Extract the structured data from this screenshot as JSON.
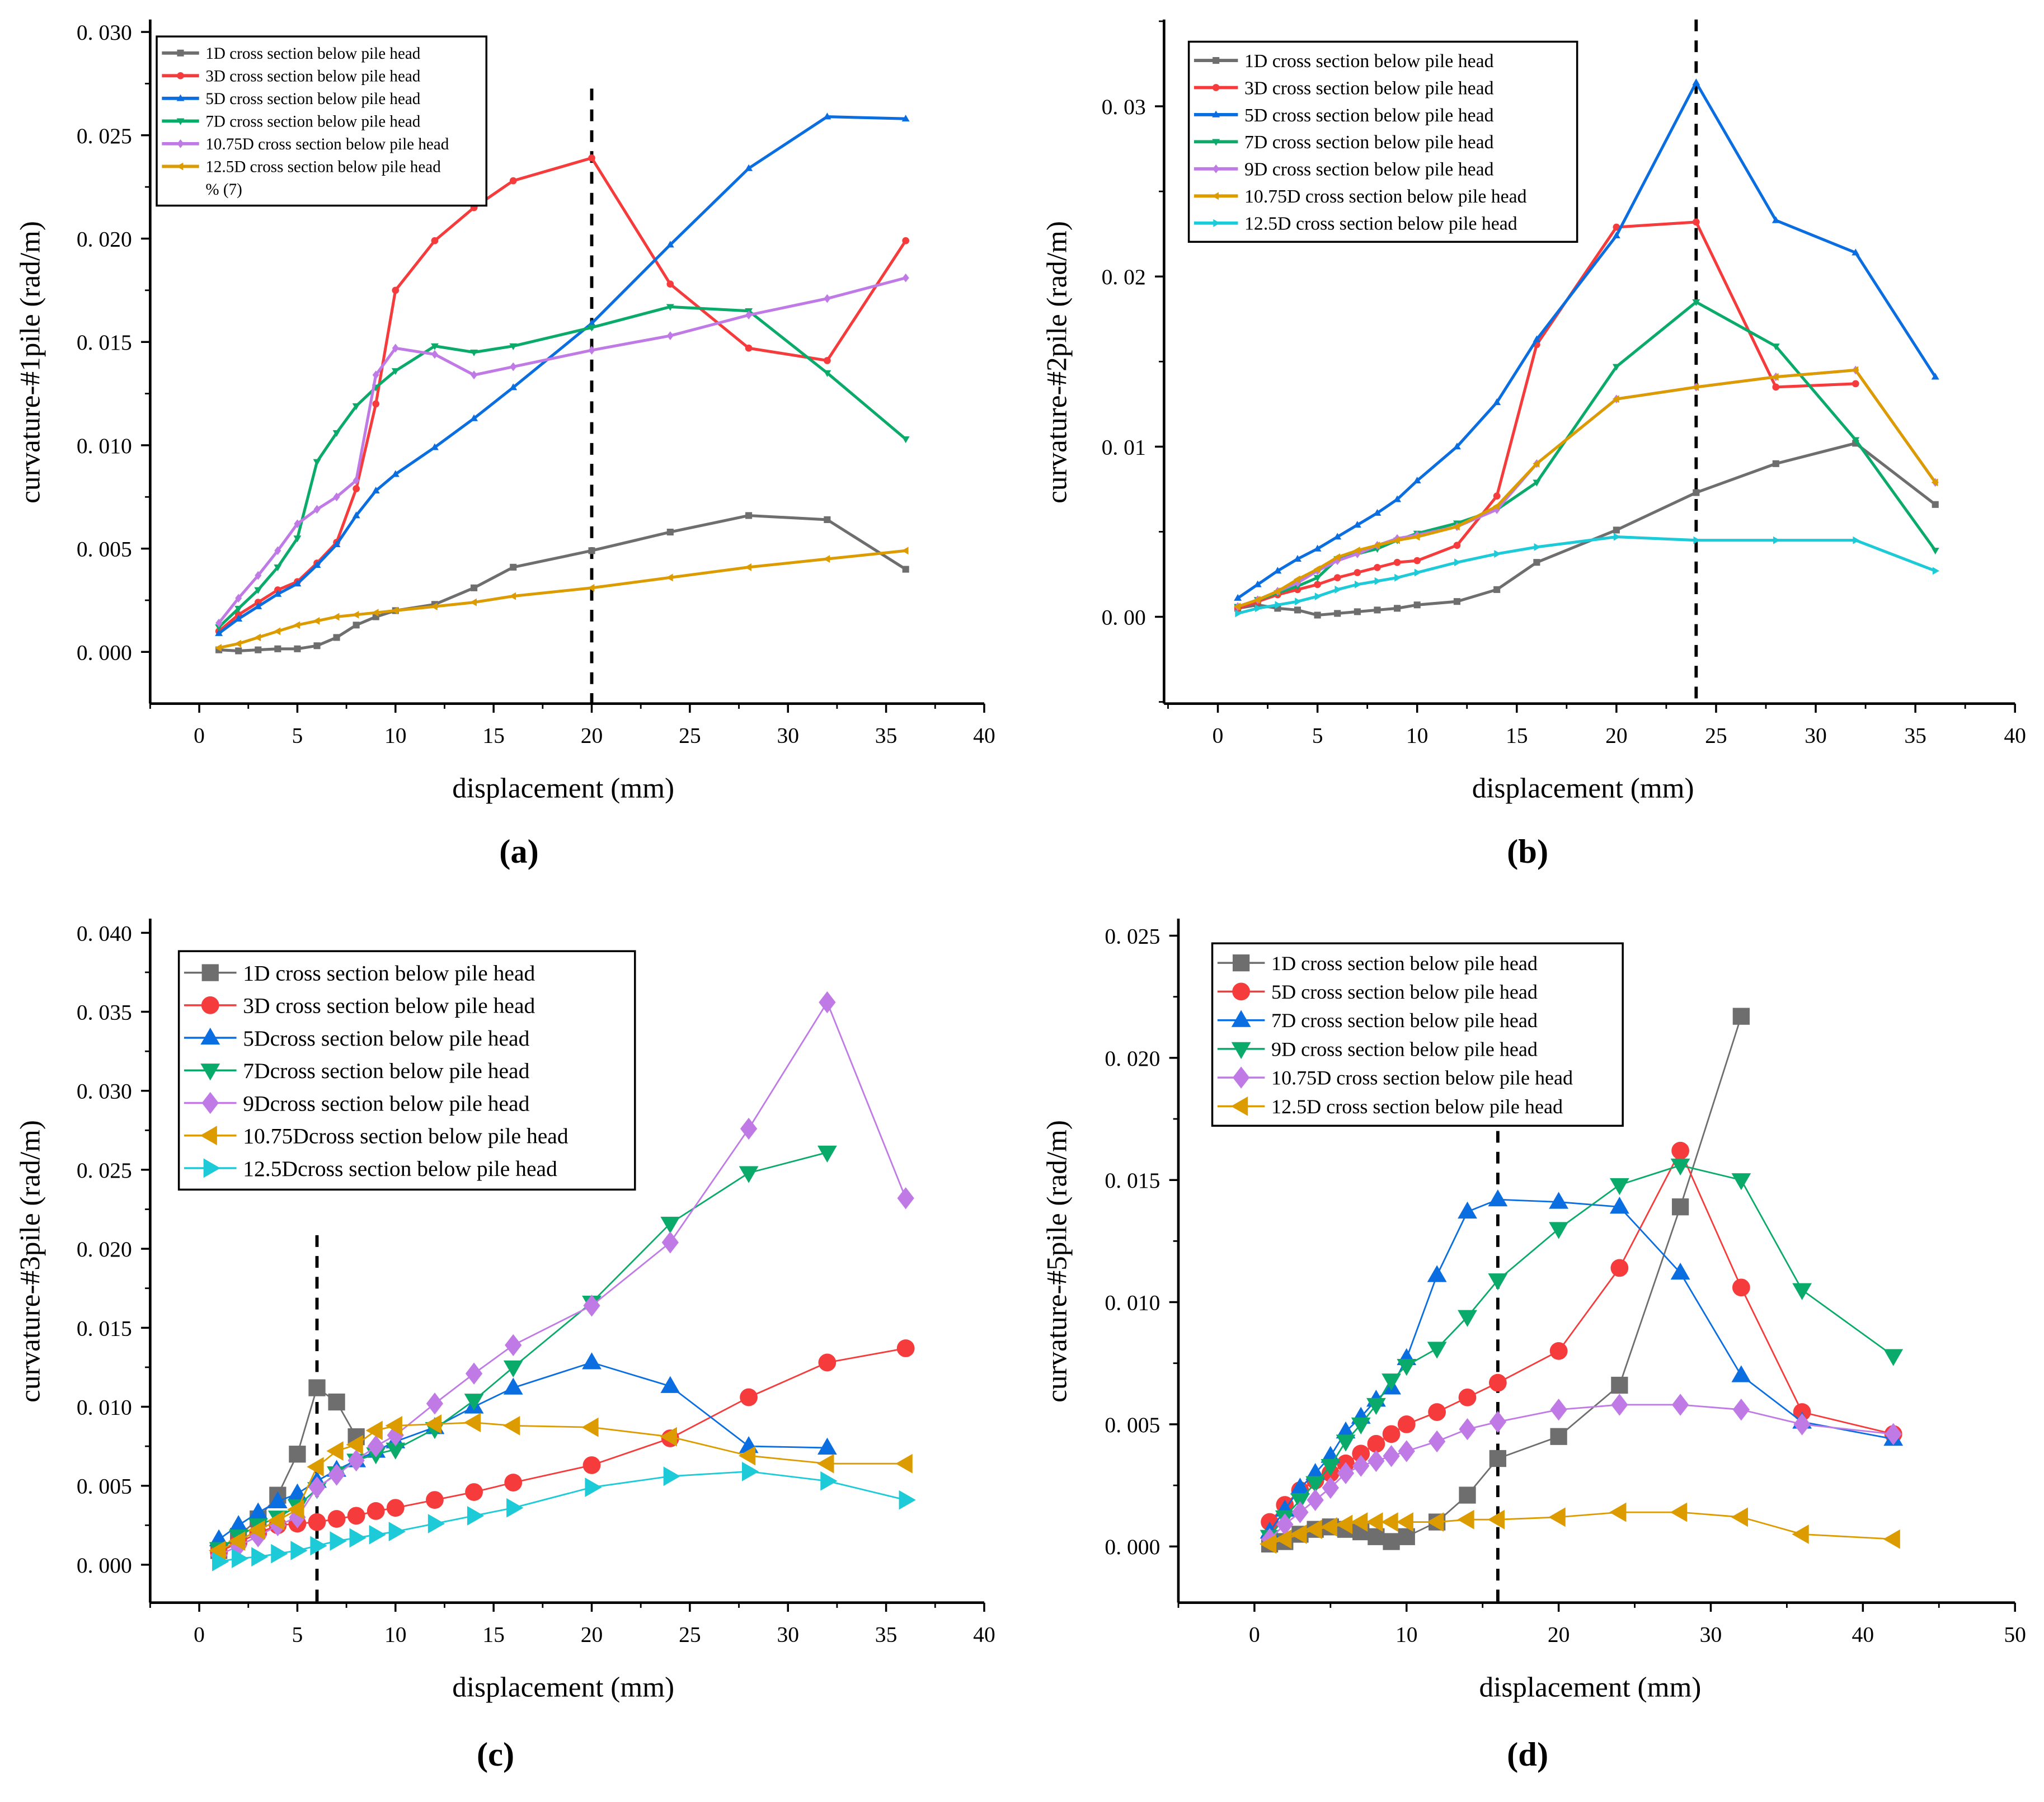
{
  "colors": {
    "gray": "#6e6e6e",
    "red": "#f53b3b",
    "blue": "#0a6ee0",
    "green": "#0aab6a",
    "purple": "#c07ae6",
    "orange": "#dc9c00",
    "cyan": "#1ccad8"
  },
  "chart_data": [
    {
      "panel": "(a)",
      "type": "line",
      "xlabel": "displacement (mm)",
      "ylabel": "curvature-#1pile (rad/m)",
      "xlim": [
        -2.5,
        40
      ],
      "ylim": [
        -0.0025,
        0.0306
      ],
      "xticks": [
        "0",
        "5",
        "10",
        "15",
        "20",
        "25",
        "30",
        "35",
        "40"
      ],
      "yticks": [
        "0. 000",
        "0. 005",
        "0. 010",
        "0. 015",
        "0. 020",
        "0. 025",
        "0. 030"
      ],
      "marker_size": "small",
      "dashed_line_x": 20,
      "legend_position": "top-left",
      "legend_extra": "% (7)",
      "x": [
        1,
        2,
        3,
        4,
        5,
        6,
        7,
        8,
        9,
        10,
        12,
        14,
        16,
        20,
        24,
        28,
        32,
        36
      ],
      "series": [
        {
          "name": "1D cross section below pile head",
          "color": "gray",
          "marker": "square",
          "values": [
            0.0001,
            5e-05,
            0.0001,
            0.00015,
            0.00015,
            0.0003,
            0.0007,
            0.0013,
            0.0017,
            0.002,
            0.0023,
            0.0031,
            0.0041,
            0.0049,
            0.0058,
            0.0066,
            0.0064,
            0.004
          ]
        },
        {
          "name": "3D cross section below pile head",
          "color": "red",
          "marker": "circle",
          "values": [
            0.001,
            0.0018,
            0.0024,
            0.003,
            0.0034,
            0.0043,
            0.0053,
            0.0079,
            0.012,
            0.0175,
            0.0199,
            0.0215,
            0.0228,
            0.0239,
            0.0178,
            0.0147,
            0.0141,
            0.0199
          ]
        },
        {
          "name": "5D cross section below pile head",
          "color": "blue",
          "marker": "triangle-up",
          "values": [
            0.0009,
            0.0016,
            0.0022,
            0.0028,
            0.0033,
            0.0042,
            0.0052,
            0.0066,
            0.0078,
            0.0086,
            0.0099,
            0.0113,
            0.0128,
            0.0159,
            0.0197,
            0.0234,
            0.0259,
            0.0258
          ]
        },
        {
          "name": "7D cross section below pile head",
          "color": "green",
          "marker": "triangle-down",
          "values": [
            0.0012,
            0.0021,
            0.003,
            0.0041,
            0.0055,
            0.0092,
            0.0106,
            0.0119,
            0.0128,
            0.0136,
            0.0148,
            0.0145,
            0.0148,
            0.0157,
            0.0167,
            0.0165,
            0.0135,
            0.0103
          ]
        },
        {
          "name": "10.75D cross section below pile head",
          "color": "purple",
          "marker": "diamond",
          "values": [
            0.0014,
            0.0026,
            0.0037,
            0.0049,
            0.0062,
            0.0069,
            0.0075,
            0.0083,
            0.0134,
            0.0147,
            0.0144,
            0.0134,
            0.0138,
            0.0146,
            0.0153,
            0.0163,
            0.0171,
            0.0181
          ]
        },
        {
          "name": "12.5D cross section below pile head",
          "color": "orange",
          "marker": "triangle-left",
          "values": [
            0.0002,
            0.0004,
            0.0007,
            0.001,
            0.0013,
            0.0015,
            0.0017,
            0.0018,
            0.0019,
            0.002,
            0.0022,
            0.0024,
            0.0027,
            0.0031,
            0.0036,
            0.0041,
            0.0045,
            0.0049
          ]
        }
      ]
    },
    {
      "panel": "(b)",
      "type": "line",
      "xlabel": "displacement (mm)",
      "ylabel": "curvature-#2pile (rad/m)",
      "xlim": [
        -2.7,
        40
      ],
      "ylim": [
        -0.0051,
        0.0351
      ],
      "xticks": [
        "0",
        "5",
        "10",
        "15",
        "20",
        "25",
        "30",
        "35",
        "40"
      ],
      "yticks": [
        "0. 00",
        "0. 01",
        "0. 02",
        "0. 03"
      ],
      "marker_size": "small",
      "dashed_line_x": 24,
      "legend_position": "top-left",
      "x": [
        1,
        2,
        3,
        4,
        5,
        6,
        7,
        8,
        9,
        10,
        12,
        14,
        16,
        20,
        24,
        28,
        32,
        36
      ],
      "series": [
        {
          "name": "1D cross section below pile head",
          "color": "gray",
          "marker": "square",
          "values": [
            0.0005,
            0.0007,
            0.0005,
            0.0004,
            0.0001,
            0.0002,
            0.0003,
            0.0004,
            0.0005,
            0.0007,
            0.0009,
            0.0016,
            0.0032,
            0.0051,
            0.0073,
            0.009,
            0.0102,
            0.0066
          ]
        },
        {
          "name": "3D cross section below pile head",
          "color": "red",
          "marker": "circle",
          "values": [
            0.0005,
            0.0009,
            0.0013,
            0.0016,
            0.0019,
            0.0023,
            0.0026,
            0.0029,
            0.0032,
            0.0033,
            0.0042,
            0.0071,
            0.016,
            0.0229,
            0.0232,
            0.0135,
            0.0137,
            null
          ]
        },
        {
          "name": "5D cross section below pile head",
          "color": "blue",
          "marker": "triangle-up",
          "values": [
            0.0011,
            0.0019,
            0.0027,
            0.0034,
            0.004,
            0.0047,
            0.0054,
            0.0061,
            0.0069,
            0.008,
            0.01,
            0.0126,
            0.0163,
            0.0224,
            0.0314,
            0.0233,
            0.0214,
            0.0141
          ]
        },
        {
          "name": "7D cross section below pile head",
          "color": "green",
          "marker": "triangle-down",
          "values": [
            0.0006,
            0.001,
            0.0014,
            0.0018,
            0.0023,
            0.0034,
            0.0037,
            0.004,
            0.0045,
            0.0049,
            0.0055,
            0.0063,
            0.0079,
            0.0147,
            0.0185,
            0.0159,
            0.0104,
            0.0039
          ]
        },
        {
          "name": "9D cross section below pile head",
          "color": "purple",
          "marker": "diamond",
          "values": [
            0.0006,
            0.001,
            0.0015,
            0.002,
            0.0027,
            0.0033,
            0.0037,
            0.0042,
            0.0046,
            0.0048,
            0.0053,
            0.0063,
            0.009,
            0.0128,
            0.0135,
            0.0141,
            0.0145,
            0.0079
          ]
        },
        {
          "name": "10.75D cross section below pile head",
          "color": "orange",
          "marker": "triangle-left",
          "values": [
            0.0006,
            0.001,
            0.0015,
            0.0022,
            0.0028,
            0.0035,
            0.0039,
            0.0042,
            0.0045,
            0.0047,
            0.0053,
            0.0065,
            0.009,
            0.0128,
            0.0135,
            0.0141,
            0.0145,
            0.0079
          ]
        },
        {
          "name": "12.5D cross section below pile head",
          "color": "cyan",
          "marker": "triangle-right",
          "values": [
            0.0002,
            0.0005,
            0.0007,
            0.0009,
            0.0012,
            0.0016,
            0.0019,
            0.0021,
            0.0023,
            0.0026,
            0.0032,
            0.0037,
            0.0041,
            0.0047,
            0.0045,
            0.0045,
            0.0045,
            0.0027
          ]
        }
      ]
    },
    {
      "panel": "(c)",
      "type": "line",
      "xlabel": "displacement (mm)",
      "ylabel": "curvature-#3pile (rad/m)",
      "xlim": [
        -2.5,
        40
      ],
      "ylim": [
        -0.0024,
        0.0409
      ],
      "xticks": [
        "0",
        "5",
        "10",
        "15",
        "20",
        "25",
        "30",
        "35",
        "40"
      ],
      "yticks": [
        "0. 000",
        "0. 005",
        "0. 010",
        "0. 015",
        "0. 020",
        "0. 025",
        "0. 030",
        "0. 035",
        "0. 040"
      ],
      "marker_size": "large",
      "dashed_line_x": 6,
      "legend_position": "top-left",
      "x": [
        1,
        2,
        3,
        4,
        5,
        6,
        7,
        8,
        9,
        10,
        12,
        14,
        16,
        20,
        24,
        28,
        32,
        36
      ],
      "series": [
        {
          "name": "1D cross section below pile head",
          "color": "gray",
          "marker": "square",
          "values": [
            0.0009,
            0.0018,
            0.0029,
            0.0044,
            0.007,
            0.0112,
            0.0103,
            0.0081,
            null,
            null,
            null,
            null,
            null,
            null,
            null,
            null,
            null,
            null
          ]
        },
        {
          "name": "3D cross section below pile head",
          "color": "red",
          "marker": "circle",
          "values": [
            0.0008,
            0.0014,
            0.002,
            0.0025,
            0.0026,
            0.0027,
            0.0029,
            0.0031,
            0.0034,
            0.0036,
            0.0041,
            0.0046,
            0.0052,
            0.0063,
            0.008,
            0.0106,
            0.0128,
            0.0137
          ]
        },
        {
          "name": "5Dcross section below pile head",
          "color": "blue",
          "marker": "triangle-up",
          "values": [
            0.0016,
            0.0025,
            0.0033,
            0.004,
            0.0045,
            0.0053,
            0.006,
            0.0066,
            0.0072,
            0.0078,
            0.0087,
            0.01,
            0.0112,
            0.0128,
            0.0113,
            0.0075,
            0.0074,
            null
          ]
        },
        {
          "name": "7Dcross section below pile head",
          "color": "green",
          "marker": "triangle-down",
          "values": [
            0.001,
            0.0018,
            0.0025,
            0.003,
            0.0037,
            0.0048,
            0.0058,
            0.0066,
            0.007,
            0.0073,
            0.0086,
            0.0104,
            0.0125,
            0.0166,
            0.0216,
            0.0248,
            0.0261,
            null
          ]
        },
        {
          "name": "9Dcross section below pile head",
          "color": "purple",
          "marker": "diamond",
          "values": [
            0.0006,
            0.0012,
            0.0018,
            0.0025,
            0.003,
            0.0049,
            0.0057,
            0.0066,
            0.0075,
            0.0082,
            0.0102,
            0.0121,
            0.0139,
            0.0164,
            0.0204,
            0.0276,
            0.0356,
            0.0232
          ]
        },
        {
          "name": "10.75Dcross section below pile head",
          "color": "orange",
          "marker": "triangle-left",
          "values": [
            0.0009,
            0.0015,
            0.0022,
            0.0028,
            0.0035,
            0.0062,
            0.0072,
            0.0076,
            0.0085,
            0.0088,
            0.0089,
            0.009,
            0.0088,
            0.0087,
            0.0081,
            0.0069,
            0.0064,
            0.0064
          ]
        },
        {
          "name": "12.5Dcross section below pile head",
          "color": "cyan",
          "marker": "triangle-right",
          "values": [
            0.0002,
            0.0004,
            0.0005,
            0.0007,
            0.0009,
            0.0012,
            0.0015,
            0.0017,
            0.0019,
            0.0021,
            0.0026,
            0.0031,
            0.0036,
            0.0049,
            0.0056,
            0.0059,
            0.0053,
            0.0041
          ]
        }
      ]
    },
    {
      "panel": "(d)",
      "type": "line",
      "xlabel": "displacement (mm)",
      "ylabel": "curvature-#5pile (rad/m)",
      "xlim": [
        -5,
        50
      ],
      "ylim": [
        -0.0023,
        0.0257
      ],
      "xticks": [
        "0",
        "10",
        "20",
        "30",
        "40",
        "50"
      ],
      "yticks": [
        "0. 000",
        "0. 005",
        "0. 010",
        "0. 015",
        "0. 020",
        "0. 025"
      ],
      "marker_size": "large",
      "dashed_line_x": 16,
      "legend_position": "top-left",
      "x": [
        1,
        2,
        3,
        4,
        5,
        6,
        7,
        8,
        9,
        10,
        12,
        14,
        16,
        20,
        24,
        28,
        32,
        36,
        42
      ],
      "series": [
        {
          "name": "1D cross section below pile head",
          "color": "gray",
          "marker": "square",
          "values": [
            0.0001,
            0.0002,
            0.0005,
            0.0007,
            0.0008,
            0.0007,
            0.0006,
            0.0004,
            0.0002,
            0.0004,
            0.001,
            0.0021,
            0.0036,
            0.0045,
            0.0066,
            0.0139,
            0.0217,
            null,
            null
          ]
        },
        {
          "name": "5D cross section below pile head",
          "color": "red",
          "marker": "circle",
          "values": [
            0.001,
            0.0017,
            0.0023,
            0.0027,
            0.003,
            0.0034,
            0.0038,
            0.0042,
            0.0046,
            0.005,
            0.0055,
            0.0061,
            0.0067,
            0.008,
            0.0114,
            0.0162,
            0.0106,
            0.0055,
            0.0046
          ]
        },
        {
          "name": "7D cross section below pile head",
          "color": "blue",
          "marker": "triangle-up",
          "values": [
            0.0006,
            0.0015,
            0.0024,
            0.003,
            0.0037,
            0.0047,
            0.0053,
            0.006,
            0.0065,
            0.0077,
            0.0111,
            0.0137,
            0.0142,
            0.0141,
            0.0139,
            0.0112,
            0.007,
            0.0051,
            0.0044
          ]
        },
        {
          "name": "9D cross section below pile head",
          "color": "green",
          "marker": "triangle-down",
          "values": [
            0.0004,
            0.0012,
            0.0019,
            0.0026,
            0.0033,
            0.0043,
            0.005,
            0.0058,
            0.0068,
            0.0074,
            0.0081,
            0.0094,
            0.0109,
            0.013,
            0.0148,
            0.0156,
            0.015,
            0.0105,
            0.0078
          ]
        },
        {
          "name": "10.75D cross section below pile head",
          "color": "purple",
          "marker": "diamond",
          "values": [
            0.0003,
            0.0009,
            0.0014,
            0.0019,
            0.0024,
            0.003,
            0.0033,
            0.0035,
            0.0037,
            0.0039,
            0.0043,
            0.0048,
            0.0051,
            0.0056,
            0.0058,
            0.0058,
            0.0056,
            0.005,
            0.0046
          ]
        },
        {
          "name": "12.5D cross section below pile head",
          "color": "orange",
          "marker": "triangle-left",
          "values": [
            0.0001,
            0.0003,
            0.0005,
            0.0007,
            0.0008,
            0.0009,
            0.001,
            0.001,
            0.001,
            0.001,
            0.001,
            0.0011,
            0.0011,
            0.0012,
            0.0014,
            0.0014,
            0.0012,
            0.0005,
            0.0003
          ]
        }
      ]
    }
  ]
}
